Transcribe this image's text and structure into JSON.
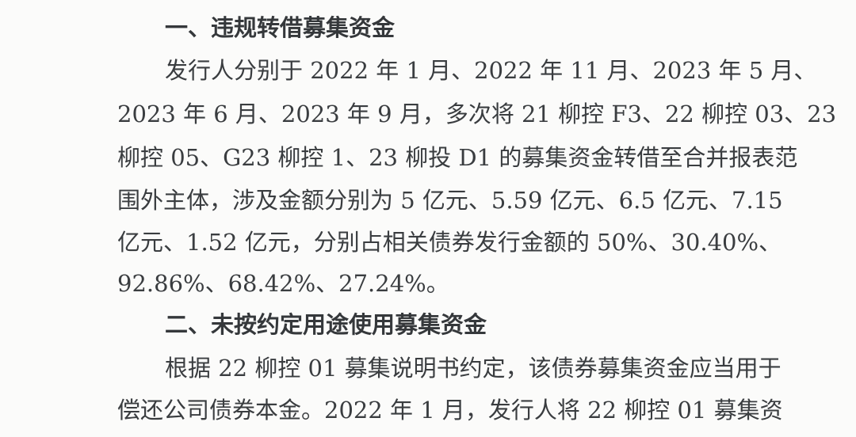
{
  "sections": [
    {
      "heading": "一、违规转借募集资金",
      "lines": [
        "发行人分别于 2022 年 1 月、2022 年 11 月、2023 年 5 月、",
        "2023 年 6 月、2023 年 9 月，多次将 21 柳控 F3、22 柳控 03、23",
        "柳控 05、G23 柳控 1、23 柳投 D1 的募集资金转借至合并报表范",
        "围外主体，涉及金额分别为 5 亿元、5.59 亿元、6.5 亿元、7.15",
        "亿元、1.52 亿元，分别占相关债券发行金额的 50%、30.40%、",
        "92.86%、68.42%、27.24%。"
      ]
    },
    {
      "heading": "二、未按约定用途使用募集资金",
      "lines": [
        "根据 22 柳控 01 募集说明书约定，该债券募集资金应当用于",
        "偿还公司债券本金。2022 年 1 月，发行人将 22 柳控 01 募集资"
      ]
    }
  ]
}
